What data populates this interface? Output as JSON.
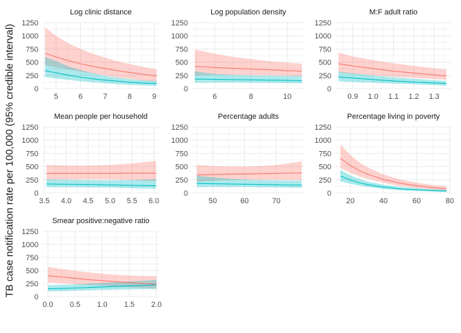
{
  "figure": {
    "ylabel": "TB case notification rate per 100,000 (95% credible interval)"
  },
  "colors": {
    "red": "#F8766D",
    "teal": "#00BFC4",
    "grid": "#EBEBEB",
    "tick_text": "#4D4D4D",
    "strip_text": "#1A1A1A"
  },
  "chart_data": [
    {
      "type": "line",
      "title": "Log clinic distance",
      "xlim": [
        4.45,
        9.2
      ],
      "ylim": [
        0,
        1250
      ],
      "xticks": [
        5,
        6,
        7,
        8,
        9
      ],
      "xtick_labels": [
        "5",
        "6",
        "7",
        "8",
        "9"
      ],
      "yticks": [
        0,
        250,
        500,
        750,
        1000,
        1250
      ],
      "grid": true,
      "series": [
        {
          "color": "red",
          "x": [
            4.55,
            5.0,
            5.5,
            6.0,
            6.5,
            7.0,
            7.5,
            8.0,
            8.5,
            9.1
          ],
          "y": [
            670,
            600,
            530,
            470,
            420,
            380,
            340,
            305,
            275,
            240
          ],
          "lower": [
            440,
            400,
            360,
            320,
            285,
            250,
            215,
            185,
            155,
            130
          ],
          "upper": [
            1160,
            1000,
            860,
            750,
            660,
            585,
            520,
            465,
            415,
            365
          ]
        },
        {
          "color": "teal",
          "x": [
            4.55,
            5.0,
            5.5,
            6.0,
            6.5,
            7.0,
            7.5,
            8.0,
            8.5,
            9.1
          ],
          "y": [
            340,
            300,
            255,
            215,
            185,
            160,
            140,
            120,
            105,
            95
          ],
          "lower": [
            220,
            190,
            165,
            140,
            120,
            100,
            85,
            70,
            60,
            50
          ],
          "upper": [
            600,
            520,
            420,
            350,
            290,
            245,
            210,
            180,
            160,
            145
          ]
        }
      ]
    },
    {
      "type": "line",
      "title": "Log population density",
      "xlim": [
        4.75,
        10.95
      ],
      "ylim": [
        0,
        1250
      ],
      "xticks": [
        6,
        8,
        10
      ],
      "xtick_labels": [
        "6",
        "8",
        "10"
      ],
      "yticks": [
        0,
        250,
        500,
        750,
        1000,
        1250
      ],
      "grid": true,
      "series": [
        {
          "color": "red",
          "x": [
            4.9,
            5.5,
            6,
            7,
            8,
            9,
            10,
            10.8
          ],
          "y": [
            420,
            410,
            400,
            385,
            370,
            355,
            340,
            330
          ],
          "lower": [
            250,
            255,
            260,
            260,
            255,
            250,
            240,
            235
          ],
          "upper": [
            740,
            700,
            660,
            600,
            560,
            520,
            490,
            470
          ]
        },
        {
          "color": "teal",
          "x": [
            4.9,
            5.5,
            6,
            7,
            8,
            9,
            10,
            10.8
          ],
          "y": [
            180,
            178,
            175,
            170,
            165,
            160,
            155,
            150
          ],
          "lower": [
            110,
            110,
            112,
            112,
            110,
            108,
            104,
            100
          ],
          "upper": [
            330,
            300,
            280,
            260,
            250,
            245,
            240,
            240
          ]
        }
      ]
    },
    {
      "type": "line",
      "title": "M:F adult ratio",
      "xlim": [
        0.815,
        1.385
      ],
      "ylim": [
        0,
        1250
      ],
      "xticks": [
        0.9,
        1.0,
        1.1,
        1.2,
        1.3
      ],
      "xtick_labels": [
        "0.9",
        "1.0",
        "1.1",
        "1.2",
        "1.3"
      ],
      "yticks": [
        0,
        250,
        500,
        750,
        1000,
        1250
      ],
      "grid": true,
      "series": [
        {
          "color": "red",
          "x": [
            0.83,
            0.9,
            1.0,
            1.1,
            1.2,
            1.3,
            1.36
          ],
          "y": [
            470,
            430,
            380,
            330,
            295,
            260,
            240
          ],
          "lower": [
            300,
            280,
            250,
            225,
            200,
            180,
            165
          ],
          "upper": [
            680,
            610,
            540,
            480,
            430,
            385,
            360
          ]
        },
        {
          "color": "teal",
          "x": [
            0.83,
            0.9,
            1.0,
            1.1,
            1.2,
            1.3,
            1.36
          ],
          "y": [
            220,
            200,
            170,
            145,
            125,
            105,
            95
          ],
          "lower": [
            140,
            125,
            110,
            95,
            80,
            65,
            55
          ],
          "upper": [
            320,
            290,
            250,
            215,
            185,
            160,
            145
          ]
        }
      ]
    },
    {
      "type": "line",
      "title": "Mean people per household",
      "xlim": [
        3.46,
        6.12
      ],
      "ylim": [
        0,
        1250
      ],
      "xticks": [
        3.5,
        4.0,
        4.5,
        5.0,
        5.5,
        6.0
      ],
      "xtick_labels": [
        "3.5",
        "4.0",
        "4.5",
        "5.0",
        "5.5",
        "6.0"
      ],
      "yticks": [
        0,
        250,
        500,
        750,
        1000,
        1250
      ],
      "grid": true,
      "series": [
        {
          "color": "red",
          "x": [
            3.55,
            4.0,
            4.5,
            5.0,
            5.5,
            6.05
          ],
          "y": [
            370,
            372,
            372,
            373,
            375,
            375
          ],
          "lower": [
            250,
            255,
            260,
            255,
            245,
            225
          ],
          "upper": [
            530,
            520,
            520,
            530,
            560,
            610
          ]
        },
        {
          "color": "teal",
          "x": [
            3.55,
            4.0,
            4.5,
            5.0,
            5.5,
            6.05
          ],
          "y": [
            170,
            165,
            160,
            152,
            145,
            135
          ],
          "lower": [
            110,
            110,
            105,
            100,
            90,
            80
          ],
          "upper": [
            260,
            250,
            245,
            240,
            245,
            260
          ]
        }
      ]
    },
    {
      "type": "line",
      "title": "Percentage adults",
      "xlim": [
        43.5,
        78.9
      ],
      "ylim": [
        0,
        1250
      ],
      "xticks": [
        50,
        60,
        70
      ],
      "xtick_labels": [
        "50",
        "60",
        "70"
      ],
      "yticks": [
        0,
        250,
        500,
        750,
        1000,
        1250
      ],
      "grid": true,
      "series": [
        {
          "color": "red",
          "x": [
            45,
            50,
            55,
            60,
            65,
            70,
            75,
            78
          ],
          "y": [
            340,
            348,
            355,
            360,
            365,
            372,
            378,
            382
          ],
          "lower": [
            210,
            230,
            245,
            250,
            250,
            250,
            245,
            240
          ],
          "upper": [
            530,
            510,
            500,
            500,
            510,
            530,
            570,
            600
          ]
        },
        {
          "color": "teal",
          "x": [
            45,
            50,
            55,
            60,
            65,
            70,
            75,
            78
          ],
          "y": [
            180,
            175,
            170,
            165,
            160,
            155,
            150,
            148
          ],
          "lower": [
            110,
            115,
            115,
            112,
            108,
            104,
            98,
            95
          ],
          "upper": [
            330,
            295,
            270,
            255,
            245,
            240,
            235,
            235
          ]
        }
      ]
    },
    {
      "type": "line",
      "title": "Percentage living in poverty",
      "xlim": [
        11,
        81
      ],
      "ylim": [
        0,
        1250
      ],
      "xticks": [
        20,
        40,
        60,
        80
      ],
      "xtick_labels": [
        "20",
        "40",
        "60",
        "80"
      ],
      "yticks": [
        0,
        250,
        500,
        750,
        1000,
        1250
      ],
      "grid": true,
      "series": [
        {
          "color": "red",
          "x": [
            14,
            20,
            25,
            30,
            40,
            50,
            60,
            70,
            78
          ],
          "y": [
            660,
            520,
            430,
            360,
            255,
            185,
            135,
            100,
            80
          ],
          "lower": [
            470,
            380,
            320,
            270,
            190,
            130,
            90,
            60,
            40
          ],
          "upper": [
            920,
            720,
            590,
            490,
            350,
            255,
            195,
            150,
            125
          ]
        },
        {
          "color": "teal",
          "x": [
            14,
            20,
            25,
            30,
            40,
            50,
            60,
            70,
            78
          ],
          "y": [
            320,
            245,
            195,
            160,
            110,
            80,
            60,
            45,
            35
          ],
          "lower": [
            220,
            175,
            140,
            115,
            75,
            50,
            35,
            25,
            18
          ],
          "upper": [
            440,
            335,
            270,
            220,
            155,
            115,
            90,
            70,
            60
          ]
        }
      ]
    },
    {
      "type": "line",
      "title": "Smear positive:negative ratio",
      "xlim": [
        -0.1,
        2.05
      ],
      "ylim": [
        0,
        1250
      ],
      "xticks": [
        0.0,
        0.5,
        1.0,
        1.5,
        2.0
      ],
      "xtick_labels": [
        "0.0",
        "0.5",
        "1.0",
        "1.5",
        "2.0"
      ],
      "yticks": [
        0,
        250,
        500,
        750,
        1000,
        1250
      ],
      "grid": true,
      "series": [
        {
          "color": "red",
          "x": [
            0,
            0.25,
            0.5,
            0.75,
            1.0,
            1.25,
            1.5,
            1.75,
            2.0
          ],
          "y": [
            400,
            375,
            350,
            325,
            305,
            285,
            268,
            252,
            235
          ],
          "lower": [
            270,
            255,
            240,
            225,
            210,
            195,
            180,
            165,
            150
          ],
          "upper": [
            570,
            530,
            495,
            465,
            440,
            420,
            405,
            395,
            390
          ]
        },
        {
          "color": "teal",
          "x": [
            0,
            0.25,
            0.5,
            0.75,
            1.0,
            1.25,
            1.5,
            1.75,
            2.0
          ],
          "y": [
            150,
            155,
            165,
            175,
            185,
            195,
            205,
            215,
            225
          ],
          "lower": [
            100,
            105,
            112,
            120,
            128,
            135,
            140,
            145,
            150
          ],
          "upper": [
            220,
            225,
            235,
            250,
            262,
            275,
            290,
            305,
            320
          ]
        }
      ]
    }
  ]
}
